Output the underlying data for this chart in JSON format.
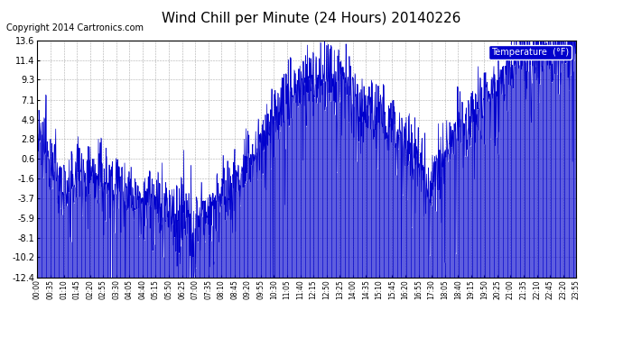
{
  "title": "Wind Chill per Minute (24 Hours) 20140226",
  "copyright": "Copyright 2014 Cartronics.com",
  "legend_label": "Temperature  (°F)",
  "legend_bg": "#0000cc",
  "legend_text_color": "#ffffff",
  "line_color": "#0000cc",
  "bg_color": "#ffffff",
  "plot_bg": "#ffffff",
  "grid_color": "#999999",
  "ylim": [
    -12.4,
    13.6
  ],
  "yticks": [
    13.6,
    11.4,
    9.3,
    7.1,
    4.9,
    2.8,
    0.6,
    -1.6,
    -3.7,
    -5.9,
    -8.1,
    -10.2,
    -12.4
  ],
  "title_fontsize": 11,
  "copyright_fontsize": 7,
  "xtick_labels": [
    "00:00",
    "00:35",
    "01:10",
    "01:45",
    "02:20",
    "02:55",
    "03:30",
    "04:05",
    "04:40",
    "05:15",
    "05:50",
    "06:25",
    "07:00",
    "07:35",
    "08:10",
    "08:45",
    "09:20",
    "09:55",
    "10:30",
    "11:05",
    "11:40",
    "12:15",
    "12:50",
    "13:25",
    "14:00",
    "14:35",
    "15:10",
    "15:45",
    "16:20",
    "16:55",
    "17:30",
    "18:05",
    "18:40",
    "19:15",
    "19:50",
    "20:25",
    "21:00",
    "21:35",
    "22:10",
    "22:45",
    "23:20",
    "23:55"
  ],
  "num_points": 1440
}
